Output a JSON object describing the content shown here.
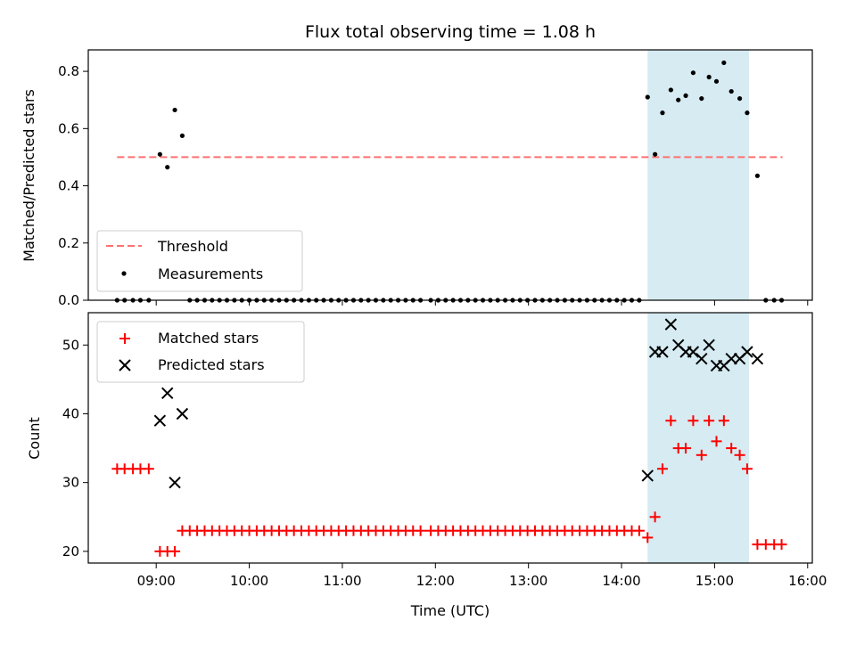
{
  "figure": {
    "title": "Flux total observing time = 1.08 h",
    "xlabel": "Time (UTC)",
    "x_ticks": [
      "09:00",
      "10:00",
      "11:00",
      "12:00",
      "13:00",
      "14:00",
      "15:00",
      "16:00"
    ],
    "colors": {
      "threshold": "#ff7070",
      "measurements": "#000000",
      "matched": "#ff0000",
      "predicted": "#000000",
      "shade": "#add8e6"
    }
  },
  "chart_data": [
    {
      "type": "scatter",
      "ylabel": "Matched/Predicted stars",
      "xlim": [
        8.27,
        16.05
      ],
      "ylim": [
        0,
        0.875
      ],
      "y_ticks": [
        0.0,
        0.2,
        0.4,
        0.6,
        0.8
      ],
      "y_tick_labels": [
        "0.0",
        "0.2",
        "0.4",
        "0.6",
        "0.8"
      ],
      "shaded_span": [
        14.28,
        15.37
      ],
      "threshold": {
        "name": "Threshold",
        "y": 0.5,
        "x": [
          8.58,
          15.73
        ]
      },
      "legend_position": "lower-left",
      "series": [
        {
          "name": "Measurements",
          "marker": "dot",
          "x": [
            8.58,
            8.66,
            8.75,
            8.83,
            8.92,
            9.04,
            9.12,
            9.2,
            9.28,
            9.36,
            9.44,
            9.52,
            9.6,
            9.68,
            9.76,
            9.84,
            9.92,
            10.0,
            10.08,
            10.16,
            10.24,
            10.32,
            10.4,
            10.48,
            10.56,
            10.64,
            10.72,
            10.8,
            10.88,
            10.96,
            11.04,
            11.12,
            11.2,
            11.28,
            11.36,
            11.44,
            11.52,
            11.6,
            11.68,
            11.76,
            11.84,
            11.95,
            12.03,
            12.11,
            12.19,
            12.27,
            12.35,
            12.43,
            12.51,
            12.59,
            12.67,
            12.75,
            12.83,
            12.91,
            12.99,
            13.07,
            13.15,
            13.23,
            13.31,
            13.39,
            13.47,
            13.55,
            13.63,
            13.71,
            13.79,
            13.87,
            13.95,
            14.03,
            14.11,
            14.19,
            14.28,
            14.36,
            14.44,
            14.53,
            14.61,
            14.69,
            14.77,
            14.86,
            14.94,
            15.02,
            15.1,
            15.18,
            15.27,
            15.35,
            15.46,
            15.55,
            15.64,
            15.72
          ],
          "y": [
            0,
            0,
            0,
            0,
            0,
            0.51,
            0.465,
            0.665,
            0.575,
            0,
            0,
            0,
            0,
            0,
            0,
            0,
            0,
            0,
            0,
            0,
            0,
            0,
            0,
            0,
            0,
            0,
            0,
            0,
            0,
            0,
            0,
            0,
            0,
            0,
            0,
            0,
            0,
            0,
            0,
            0,
            0,
            0,
            0,
            0,
            0,
            0,
            0,
            0,
            0,
            0,
            0,
            0,
            0,
            0,
            0,
            0,
            0,
            0,
            0,
            0,
            0,
            0,
            0,
            0,
            0,
            0,
            0,
            0,
            0,
            0,
            0.71,
            0.51,
            0.655,
            0.735,
            0.7,
            0.715,
            0.795,
            0.705,
            0.78,
            0.765,
            0.83,
            0.73,
            0.705,
            0.655,
            0.435,
            0,
            0,
            0
          ]
        }
      ]
    },
    {
      "type": "scatter",
      "ylabel": "Count",
      "xlim": [
        8.27,
        16.05
      ],
      "ylim": [
        18.3,
        54.7
      ],
      "y_ticks": [
        20,
        30,
        40,
        50
      ],
      "y_tick_labels": [
        "20",
        "30",
        "40",
        "50"
      ],
      "shaded_span": [
        14.28,
        15.37
      ],
      "legend_position": "upper-left",
      "series": [
        {
          "name": "Matched stars",
          "marker": "plus",
          "x": [
            8.58,
            8.66,
            8.75,
            8.83,
            8.92,
            9.04,
            9.12,
            9.2,
            9.28,
            9.36,
            9.44,
            9.52,
            9.6,
            9.68,
            9.76,
            9.84,
            9.92,
            10.0,
            10.08,
            10.16,
            10.24,
            10.32,
            10.4,
            10.48,
            10.56,
            10.64,
            10.72,
            10.8,
            10.88,
            10.96,
            11.04,
            11.12,
            11.2,
            11.28,
            11.36,
            11.44,
            11.52,
            11.6,
            11.68,
            11.76,
            11.84,
            11.95,
            12.03,
            12.11,
            12.19,
            12.27,
            12.35,
            12.43,
            12.51,
            12.59,
            12.67,
            12.75,
            12.83,
            12.91,
            12.99,
            13.07,
            13.15,
            13.23,
            13.31,
            13.39,
            13.47,
            13.55,
            13.63,
            13.71,
            13.79,
            13.87,
            13.95,
            14.03,
            14.11,
            14.19,
            14.28,
            14.36,
            14.44,
            14.53,
            14.61,
            14.69,
            14.77,
            14.86,
            14.94,
            15.02,
            15.1,
            15.18,
            15.27,
            15.35,
            15.46,
            15.55,
            15.64,
            15.72
          ],
          "y": [
            32,
            32,
            32,
            32,
            32,
            20,
            20,
            20,
            23,
            23,
            23,
            23,
            23,
            23,
            23,
            23,
            23,
            23,
            23,
            23,
            23,
            23,
            23,
            23,
            23,
            23,
            23,
            23,
            23,
            23,
            23,
            23,
            23,
            23,
            23,
            23,
            23,
            23,
            23,
            23,
            23,
            23,
            23,
            23,
            23,
            23,
            23,
            23,
            23,
            23,
            23,
            23,
            23,
            23,
            23,
            23,
            23,
            23,
            23,
            23,
            23,
            23,
            23,
            23,
            23,
            23,
            23,
            23,
            23,
            23,
            22,
            25,
            32,
            39,
            35,
            35,
            39,
            34,
            39,
            36,
            39,
            35,
            34,
            32,
            21,
            21,
            21,
            21
          ]
        },
        {
          "name": "Predicted stars",
          "marker": "x",
          "x": [
            9.04,
            9.12,
            9.2,
            9.28,
            14.28,
            14.36,
            14.44,
            14.53,
            14.61,
            14.69,
            14.77,
            14.86,
            14.94,
            15.02,
            15.1,
            15.18,
            15.27,
            15.35,
            15.46
          ],
          "y": [
            39,
            43,
            30,
            40,
            31,
            49,
            49,
            53,
            50,
            49,
            49,
            48,
            50,
            47,
            47,
            48,
            48,
            49,
            48
          ]
        }
      ]
    }
  ]
}
